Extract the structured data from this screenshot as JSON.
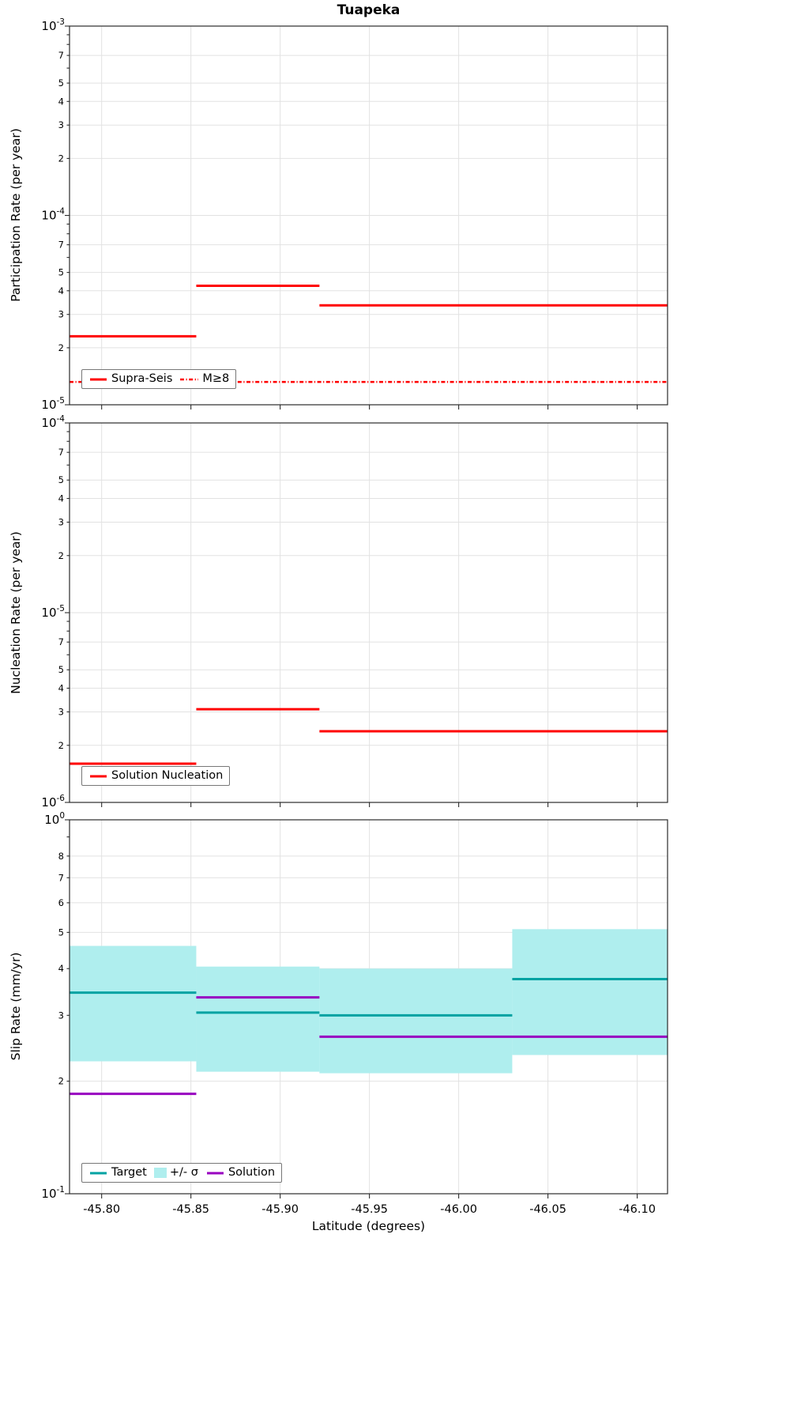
{
  "title": "Tuapeka",
  "xlabel": "Latitude (degrees)",
  "colors": {
    "rate_line": "#FF0000",
    "target": "#00A2A2",
    "band": "#AFEEEE",
    "solution": "#9800C0",
    "grid": "#E2E2E2",
    "axis": "#2B2B2B"
  },
  "legends": {
    "participation": [
      "Supra-Seis",
      "M≥8"
    ],
    "nucleation": [
      "Solution Nucleation"
    ],
    "slip": [
      "Target",
      "+/- σ",
      "Solution"
    ]
  },
  "x_axis": {
    "label": "Latitude (degrees)",
    "xlim": [
      -45.782,
      -46.117
    ],
    "ticks": [
      -45.8,
      -45.85,
      -45.9,
      -45.95,
      -46.0,
      -46.05,
      -46.1
    ],
    "tick_labels": [
      "-45.80",
      "-45.85",
      "-45.90",
      "-45.95",
      "-46.00",
      "-46.05",
      "-46.10"
    ]
  },
  "chart_data": [
    {
      "type": "line",
      "panel": "participation",
      "ylabel": "Participation Rate (per year)",
      "yscale": "log",
      "ylim": [
        1e-05,
        0.001
      ],
      "labeled_minors": [
        2,
        3,
        4,
        5,
        7
      ],
      "show_x_tick_labels": false,
      "legend_position": "lower left",
      "series": [
        {
          "name": "Supra-Seis",
          "color_key": "rate_line",
          "style": "solid",
          "segments": [
            {
              "x0": -45.782,
              "x1": -45.853,
              "y": 2.3e-05
            },
            {
              "x0": -45.853,
              "x1": -45.922,
              "y": 4.25e-05
            },
            {
              "x0": -45.922,
              "x1": -46.117,
              "y": 3.35e-05
            }
          ]
        },
        {
          "name": "M≥8",
          "color_key": "rate_line",
          "style": "dashdot",
          "segments": [
            {
              "x0": -45.782,
              "x1": -46.117,
              "y": 1.32e-05
            }
          ]
        }
      ]
    },
    {
      "type": "line",
      "panel": "nucleation",
      "ylabel": "Nucleation Rate (per year)",
      "yscale": "log",
      "ylim": [
        1e-06,
        0.0001
      ],
      "labeled_minors": [
        2,
        3,
        4,
        5,
        7
      ],
      "show_x_tick_labels": false,
      "legend_position": "lower left",
      "series": [
        {
          "name": "Solution Nucleation",
          "color_key": "rate_line",
          "style": "solid",
          "segments": [
            {
              "x0": -45.782,
              "x1": -45.853,
              "y": 1.6e-06
            },
            {
              "x0": -45.853,
              "x1": -45.922,
              "y": 3.1e-06
            },
            {
              "x0": -45.922,
              "x1": -46.117,
              "y": 2.37e-06
            }
          ]
        }
      ]
    },
    {
      "type": "line",
      "panel": "slip",
      "ylabel": "Slip Rate (mm/yr)",
      "yscale": "log",
      "ylim": [
        0.1,
        1.0
      ],
      "labeled_minors": [
        2,
        3,
        4,
        5,
        6,
        7,
        8
      ],
      "show_x_tick_labels": true,
      "legend_position": "lower left",
      "series": [
        {
          "name": "+/- σ",
          "color_key": "band",
          "style": "band",
          "segments": [
            {
              "x0": -45.782,
              "x1": -45.853,
              "y_lo": 0.226,
              "y_hi": 0.46
            },
            {
              "x0": -45.853,
              "x1": -45.922,
              "y_lo": 0.212,
              "y_hi": 0.405
            },
            {
              "x0": -45.922,
              "x1": -46.03,
              "y_lo": 0.21,
              "y_hi": 0.4
            },
            {
              "x0": -46.03,
              "x1": -46.117,
              "y_lo": 0.235,
              "y_hi": 0.51
            }
          ]
        },
        {
          "name": "Target",
          "color_key": "target",
          "style": "solid",
          "segments": [
            {
              "x0": -45.782,
              "x1": -45.853,
              "y": 0.345
            },
            {
              "x0": -45.853,
              "x1": -45.922,
              "y": 0.305
            },
            {
              "x0": -45.922,
              "x1": -46.03,
              "y": 0.3
            },
            {
              "x0": -46.03,
              "x1": -46.117,
              "y": 0.375
            }
          ]
        },
        {
          "name": "Solution",
          "color_key": "solution",
          "style": "solid",
          "segments": [
            {
              "x0": -45.782,
              "x1": -45.853,
              "y": 0.185
            },
            {
              "x0": -45.853,
              "x1": -45.922,
              "y": 0.335
            },
            {
              "x0": -45.922,
              "x1": -46.117,
              "y": 0.263
            }
          ]
        }
      ]
    }
  ]
}
